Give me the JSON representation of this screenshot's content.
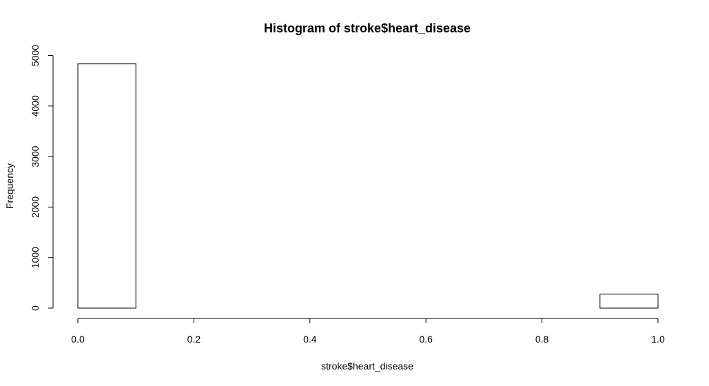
{
  "chart_data": {
    "type": "bar",
    "title": "Histogram of stroke$heart_disease",
    "xlabel": "stroke$heart_disease",
    "ylabel": "Frequency",
    "bins": [
      {
        "from": 0.0,
        "to": 0.1,
        "count": 4834
      },
      {
        "from": 0.1,
        "to": 0.2,
        "count": 0
      },
      {
        "from": 0.2,
        "to": 0.3,
        "count": 0
      },
      {
        "from": 0.3,
        "to": 0.4,
        "count": 0
      },
      {
        "from": 0.4,
        "to": 0.5,
        "count": 0
      },
      {
        "from": 0.5,
        "to": 0.6,
        "count": 0
      },
      {
        "from": 0.6,
        "to": 0.7,
        "count": 0
      },
      {
        "from": 0.7,
        "to": 0.8,
        "count": 0
      },
      {
        "from": 0.8,
        "to": 0.9,
        "count": 0
      },
      {
        "from": 0.9,
        "to": 1.0,
        "count": 276
      }
    ],
    "xlim": [
      0,
      1
    ],
    "ylim": [
      0,
      5000
    ],
    "x_ticks": [
      0.0,
      0.2,
      0.4,
      0.6,
      0.8,
      1.0
    ],
    "x_tick_labels": [
      "0.0",
      "0.2",
      "0.4",
      "0.6",
      "0.8",
      "1.0"
    ],
    "y_ticks": [
      0,
      1000,
      2000,
      3000,
      4000,
      5000
    ],
    "y_tick_labels": [
      "0",
      "1000",
      "2000",
      "3000",
      "4000",
      "5000"
    ],
    "grid": false,
    "legend": "none"
  }
}
